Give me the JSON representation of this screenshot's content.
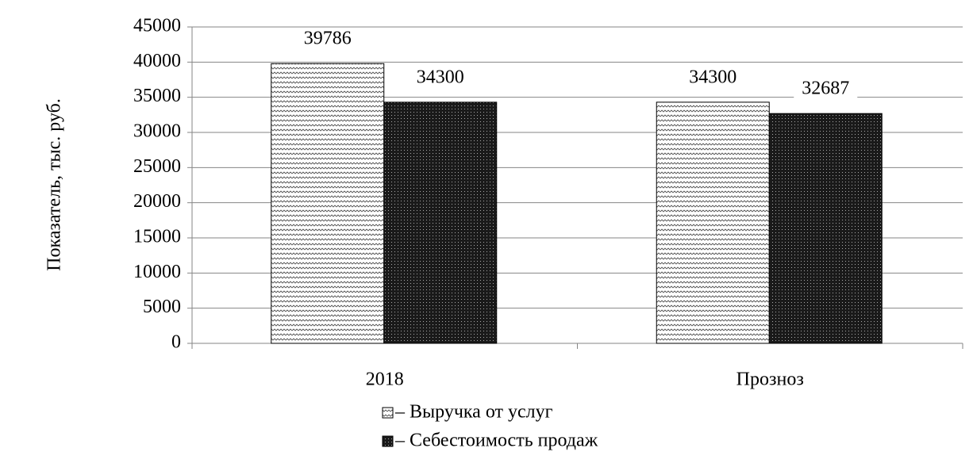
{
  "chart_data": {
    "type": "bar",
    "y_label": "Показатель, тыс. руб.",
    "categories": [
      "2018",
      "Прозноз"
    ],
    "series": [
      {
        "name": "– Выручка от услуг",
        "color": "#ffffff",
        "values": [
          39786,
          34300.0001
        ],
        "value_labels": [
          "39786",
          "34300"
        ]
      },
      {
        "name": "– Себестоимость продаж",
        "color": "#1a1a1a",
        "values": [
          34300,
          32687
        ],
        "value_labels": [
          "34300",
          "32687"
        ]
      }
    ],
    "ylim": [
      0,
      45000
    ],
    "yticks": [
      0,
      5000,
      10000,
      15000,
      20000,
      25000,
      30000,
      35000,
      40000,
      45000
    ],
    "grid": true
  }
}
